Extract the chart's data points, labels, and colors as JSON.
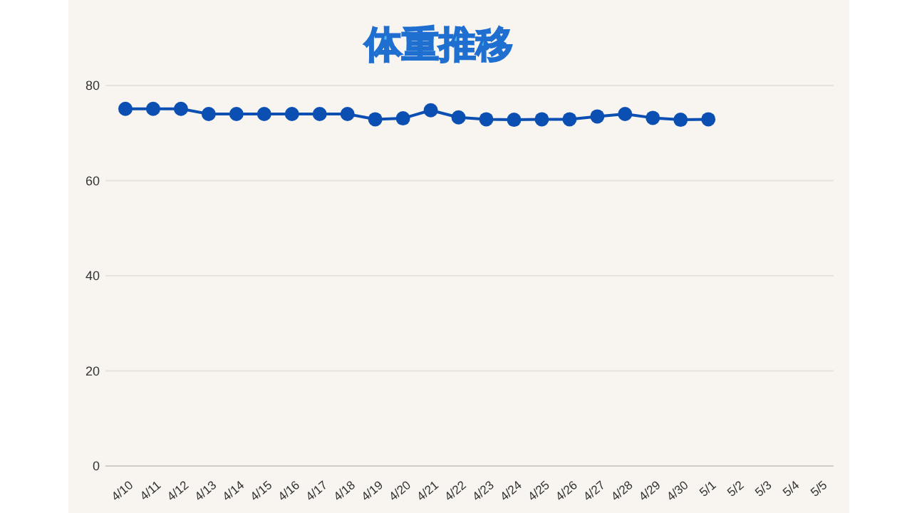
{
  "chart_data": {
    "type": "line",
    "title": "体重推移",
    "categories": [
      "4/10",
      "4/11",
      "4/12",
      "4/13",
      "4/14",
      "4/15",
      "4/16",
      "4/17",
      "4/18",
      "4/19",
      "4/20",
      "4/21",
      "4/22",
      "4/23",
      "4/24",
      "4/25",
      "4/26",
      "4/27",
      "4/28",
      "4/29",
      "4/30",
      "5/1",
      "5/2",
      "5/3",
      "5/4",
      "5/5"
    ],
    "series": [
      {
        "color": "#0b4fb3",
        "values": [
          75.1,
          75.1,
          75.1,
          74.0,
          74.0,
          74.0,
          74.0,
          74.0,
          74.0,
          72.9,
          73.1,
          74.8,
          73.3,
          72.9,
          72.8,
          72.9,
          72.9,
          73.5,
          74.0,
          73.2,
          72.8,
          72.9,
          null,
          null,
          null,
          null
        ]
      }
    ],
    "ylim": [
      0,
      80
    ],
    "yticks": [
      0,
      20,
      40,
      60,
      80
    ],
    "grid": "y",
    "marker": "circle",
    "line_style": "solid"
  }
}
